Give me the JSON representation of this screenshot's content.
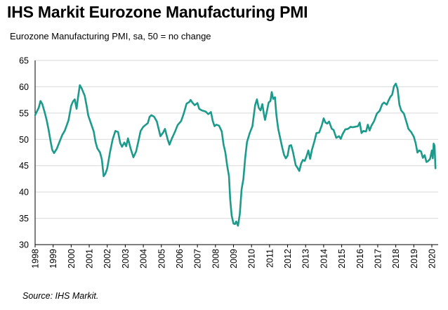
{
  "title": "IHS Markit Eurozone Manufacturing PMI",
  "subtitle": "Eurozone Manufacturing PMI, sa, 50 = no change",
  "source": "Source: IHS Markit.",
  "colors": {
    "line": "#1c9a8c",
    "grid": "#d9d9d9",
    "axis": "#000000"
  },
  "chart_data": {
    "type": "line",
    "title": "IHS Markit Eurozone Manufacturing PMI",
    "subtitle": "Eurozone Manufacturing PMI, sa, 50 = no change",
    "xlabel": "",
    "ylabel": "",
    "xlim": [
      1998.0,
      2020.35
    ],
    "ylim": [
      30,
      65
    ],
    "y_ticks": [
      30,
      35,
      40,
      45,
      50,
      55,
      60,
      65
    ],
    "x_ticks": [
      "1998",
      "1999",
      "2000",
      "2001",
      "2002",
      "2003",
      "2004",
      "2005",
      "2006",
      "2007",
      "2008",
      "2009",
      "2010",
      "2011",
      "2012",
      "2013",
      "2014",
      "2015",
      "2016",
      "2017",
      "2018",
      "2019",
      "2020"
    ],
    "grid": "horizontal",
    "legend": "none",
    "series": [
      {
        "points": [
          [
            1998.0,
            54.6
          ],
          [
            1998.2,
            56.0
          ],
          [
            1998.3,
            57.3
          ],
          [
            1998.4,
            56.7
          ],
          [
            1998.55,
            54.9
          ],
          [
            1998.65,
            53.5
          ],
          [
            1998.75,
            51.8
          ],
          [
            1998.85,
            49.8
          ],
          [
            1998.95,
            48.0
          ],
          [
            1999.05,
            47.4
          ],
          [
            1999.2,
            48.2
          ],
          [
            1999.35,
            49.5
          ],
          [
            1999.5,
            50.8
          ],
          [
            1999.65,
            51.7
          ],
          [
            1999.85,
            53.6
          ],
          [
            2000.0,
            56.4
          ],
          [
            2000.1,
            57.2
          ],
          [
            2000.2,
            57.6
          ],
          [
            2000.3,
            55.8
          ],
          [
            2000.38,
            58.0
          ],
          [
            2000.48,
            60.3
          ],
          [
            2000.58,
            59.7
          ],
          [
            2000.75,
            58.3
          ],
          [
            2000.85,
            56.5
          ],
          [
            2000.95,
            54.5
          ],
          [
            2001.1,
            53.0
          ],
          [
            2001.25,
            51.5
          ],
          [
            2001.35,
            49.5
          ],
          [
            2001.45,
            48.3
          ],
          [
            2001.6,
            47.5
          ],
          [
            2001.7,
            46.2
          ],
          [
            2001.8,
            43.0
          ],
          [
            2001.9,
            43.5
          ],
          [
            2002.0,
            44.5
          ],
          [
            2002.15,
            47.5
          ],
          [
            2002.3,
            50.0
          ],
          [
            2002.45,
            51.6
          ],
          [
            2002.6,
            51.4
          ],
          [
            2002.72,
            49.3
          ],
          [
            2002.82,
            48.6
          ],
          [
            2002.95,
            49.4
          ],
          [
            2003.05,
            48.7
          ],
          [
            2003.15,
            50.2
          ],
          [
            2003.3,
            48.2
          ],
          [
            2003.45,
            46.6
          ],
          [
            2003.6,
            47.7
          ],
          [
            2003.75,
            50.0
          ],
          [
            2003.85,
            51.6
          ],
          [
            2004.0,
            52.4
          ],
          [
            2004.25,
            53.1
          ],
          [
            2004.35,
            54.3
          ],
          [
            2004.45,
            54.6
          ],
          [
            2004.6,
            54.3
          ],
          [
            2004.75,
            53.4
          ],
          [
            2004.85,
            52.0
          ],
          [
            2004.95,
            50.6
          ],
          [
            2005.1,
            51.3
          ],
          [
            2005.2,
            52.0
          ],
          [
            2005.35,
            50.0
          ],
          [
            2005.45,
            49.0
          ],
          [
            2005.6,
            50.3
          ],
          [
            2005.75,
            51.4
          ],
          [
            2005.9,
            52.7
          ],
          [
            2006.1,
            53.5
          ],
          [
            2006.25,
            55.0
          ],
          [
            2006.4,
            56.8
          ],
          [
            2006.55,
            57.1
          ],
          [
            2006.62,
            57.5
          ],
          [
            2006.72,
            57.0
          ],
          [
            2006.85,
            56.5
          ],
          [
            2007.0,
            56.9
          ],
          [
            2007.1,
            55.8
          ],
          [
            2007.25,
            55.5
          ],
          [
            2007.45,
            55.3
          ],
          [
            2007.6,
            54.8
          ],
          [
            2007.75,
            55.2
          ],
          [
            2007.85,
            53.5
          ],
          [
            2007.95,
            52.5
          ],
          [
            2008.05,
            52.8
          ],
          [
            2008.2,
            52.6
          ],
          [
            2008.35,
            51.5
          ],
          [
            2008.45,
            49.0
          ],
          [
            2008.55,
            47.5
          ],
          [
            2008.65,
            45.0
          ],
          [
            2008.75,
            43.0
          ],
          [
            2008.82,
            38.5
          ],
          [
            2008.9,
            35.5
          ],
          [
            2009.0,
            34.0
          ],
          [
            2009.08,
            33.9
          ],
          [
            2009.15,
            34.4
          ],
          [
            2009.25,
            33.6
          ],
          [
            2009.35,
            35.8
          ],
          [
            2009.45,
            40.5
          ],
          [
            2009.55,
            42.5
          ],
          [
            2009.65,
            46.5
          ],
          [
            2009.75,
            49.5
          ],
          [
            2009.9,
            51.2
          ],
          [
            2010.05,
            52.5
          ],
          [
            2010.2,
            56.5
          ],
          [
            2010.3,
            57.6
          ],
          [
            2010.4,
            56.0
          ],
          [
            2010.5,
            55.5
          ],
          [
            2010.6,
            56.7
          ],
          [
            2010.7,
            54.5
          ],
          [
            2010.75,
            53.7
          ],
          [
            2010.85,
            55.3
          ],
          [
            2010.95,
            57.0
          ],
          [
            2011.05,
            57.3
          ],
          [
            2011.12,
            59.0
          ],
          [
            2011.2,
            57.7
          ],
          [
            2011.3,
            58.0
          ],
          [
            2011.38,
            54.6
          ],
          [
            2011.48,
            52.0
          ],
          [
            2011.58,
            50.4
          ],
          [
            2011.7,
            48.5
          ],
          [
            2011.8,
            47.1
          ],
          [
            2011.9,
            46.4
          ],
          [
            2012.0,
            46.9
          ],
          [
            2012.1,
            48.8
          ],
          [
            2012.2,
            48.9
          ],
          [
            2012.3,
            47.6
          ],
          [
            2012.45,
            45.1
          ],
          [
            2012.55,
            44.6
          ],
          [
            2012.65,
            44.0
          ],
          [
            2012.75,
            45.4
          ],
          [
            2012.85,
            46.1
          ],
          [
            2012.95,
            45.9
          ],
          [
            2013.05,
            46.8
          ],
          [
            2013.15,
            47.9
          ],
          [
            2013.25,
            46.3
          ],
          [
            2013.35,
            48.0
          ],
          [
            2013.5,
            49.8
          ],
          [
            2013.6,
            51.2
          ],
          [
            2013.75,
            51.3
          ],
          [
            2013.9,
            52.7
          ],
          [
            2014.0,
            54.0
          ],
          [
            2014.1,
            53.2
          ],
          [
            2014.2,
            53.0
          ],
          [
            2014.3,
            53.4
          ],
          [
            2014.45,
            52.0
          ],
          [
            2014.55,
            51.8
          ],
          [
            2014.7,
            50.3
          ],
          [
            2014.85,
            50.6
          ],
          [
            2014.95,
            50.1
          ],
          [
            2015.05,
            51.0
          ],
          [
            2015.2,
            51.9
          ],
          [
            2015.35,
            52.0
          ],
          [
            2015.5,
            52.4
          ],
          [
            2015.6,
            52.3
          ],
          [
            2015.75,
            52.4
          ],
          [
            2015.9,
            52.5
          ],
          [
            2016.0,
            53.2
          ],
          [
            2016.1,
            51.2
          ],
          [
            2016.2,
            51.6
          ],
          [
            2016.35,
            51.5
          ],
          [
            2016.45,
            52.8
          ],
          [
            2016.55,
            51.7
          ],
          [
            2016.65,
            52.6
          ],
          [
            2016.8,
            53.5
          ],
          [
            2016.95,
            54.9
          ],
          [
            2017.1,
            55.4
          ],
          [
            2017.25,
            56.7
          ],
          [
            2017.35,
            57.0
          ],
          [
            2017.5,
            56.6
          ],
          [
            2017.6,
            57.4
          ],
          [
            2017.7,
            58.1
          ],
          [
            2017.8,
            58.5
          ],
          [
            2017.9,
            60.1
          ],
          [
            2018.0,
            60.6
          ],
          [
            2018.1,
            59.6
          ],
          [
            2018.2,
            56.6
          ],
          [
            2018.3,
            55.5
          ],
          [
            2018.45,
            54.9
          ],
          [
            2018.6,
            53.2
          ],
          [
            2018.7,
            52.0
          ],
          [
            2018.85,
            51.4
          ],
          [
            2019.0,
            50.5
          ],
          [
            2019.1,
            49.3
          ],
          [
            2019.2,
            47.5
          ],
          [
            2019.3,
            47.9
          ],
          [
            2019.4,
            47.7
          ],
          [
            2019.5,
            46.5
          ],
          [
            2019.6,
            47.0
          ],
          [
            2019.7,
            45.7
          ],
          [
            2019.8,
            45.9
          ],
          [
            2019.9,
            46.3
          ],
          [
            2020.0,
            47.9
          ],
          [
            2020.05,
            46.4
          ],
          [
            2020.1,
            49.2
          ],
          [
            2020.15,
            48.8
          ],
          [
            2020.2,
            44.5
          ]
        ]
      }
    ]
  }
}
